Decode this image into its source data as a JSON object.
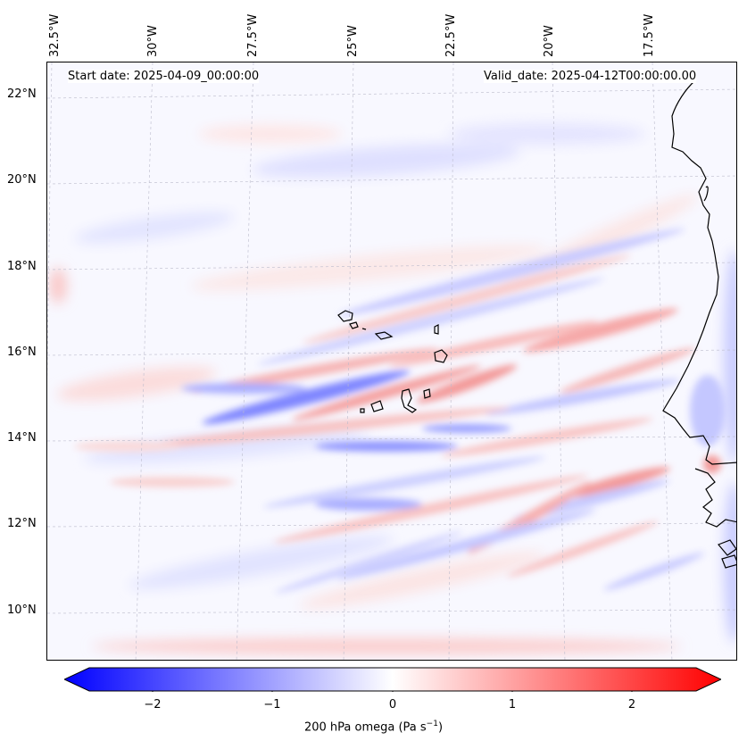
{
  "map": {
    "start_date": "Start date: 2025-04-09_00:00:00",
    "valid_date": "Valid_date: 2025-04-12T00:00:00.00",
    "lon_labels": [
      "32.5°W",
      "30°W",
      "27.5°W",
      "25°W",
      "22.5°W",
      "20°W",
      "17.5°W"
    ],
    "lat_labels": [
      "22°N",
      "20°N",
      "18°N",
      "16°N",
      "14°N",
      "12°N",
      "10°N"
    ],
    "field": "200 hPa omega",
    "colors": {
      "negative": "#0000ff",
      "zero": "#ffffff",
      "positive": "#ff0000",
      "coast": "#000000"
    }
  },
  "colorbar": {
    "ticks": [
      "−2",
      "−1",
      "0",
      "1",
      "2"
    ],
    "label": "200 hPa omega (Pa s",
    "label_sup": "−1",
    "label_end": ")",
    "range": [
      -2.6,
      2.6
    ]
  }
}
